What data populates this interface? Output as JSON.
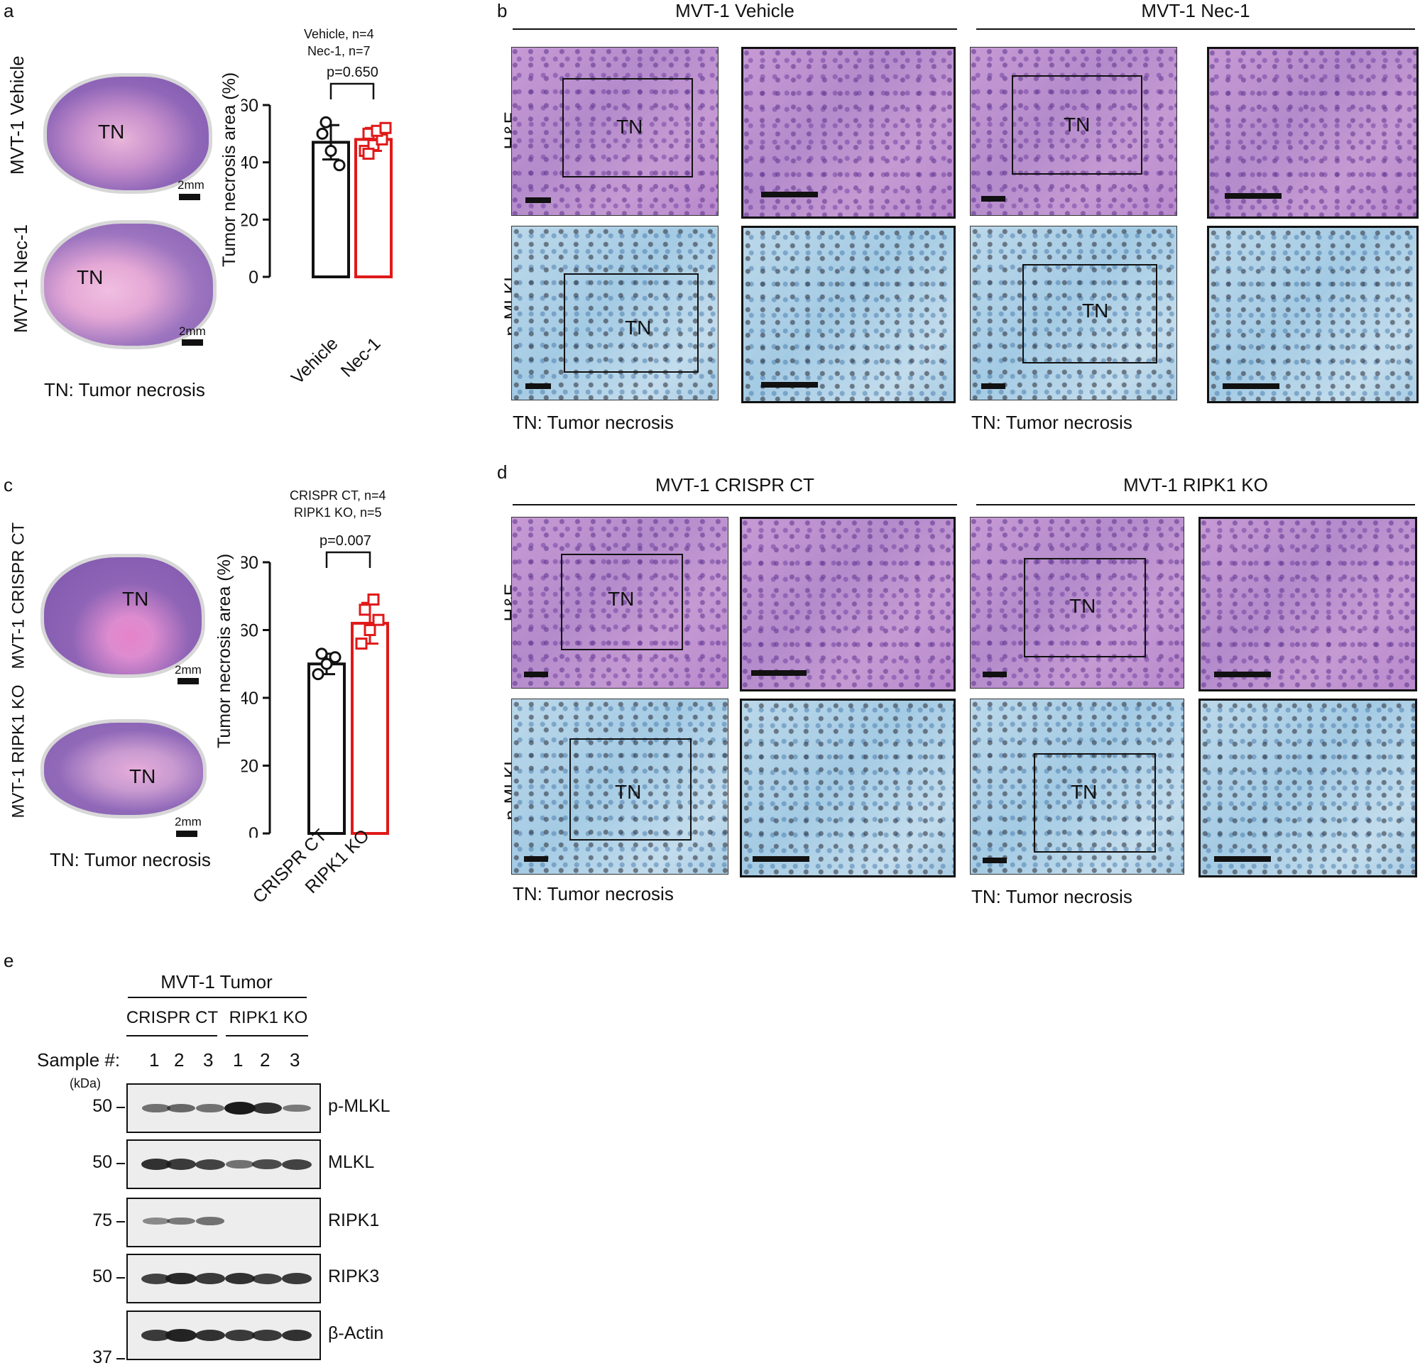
{
  "panel_labels": {
    "a": "a",
    "b": "b",
    "c": "c",
    "d": "d",
    "e": "e"
  },
  "panel_a": {
    "row_labels": [
      "MVT-1 Vehicle",
      "MVT-1 Nec-1"
    ],
    "tn": "TN",
    "scale": "2mm",
    "legend": "TN: Tumor necrosis"
  },
  "panel_c": {
    "row_labels": [
      "MVT-1 CRISPR CT",
      "MVT-1 RIPK1 KO"
    ],
    "tn": "TN",
    "scale": "2mm",
    "legend": "TN: Tumor necrosis"
  },
  "panel_b": {
    "group_titles": [
      "MVT-1 Vehicle",
      "MVT-1 Nec-1"
    ],
    "row_labels": [
      "H&E",
      "p-MLKL"
    ],
    "tn": "TN",
    "legend": "TN: Tumor necrosis"
  },
  "panel_d": {
    "group_titles": [
      "MVT-1 CRISPR CT",
      "MVT-1 RIPK1 KO"
    ],
    "row_labels": [
      "H&E",
      "p-MLKL"
    ],
    "tn": "TN",
    "legend": "TN: Tumor necrosis"
  },
  "panel_e": {
    "title": "MVT-1 Tumor",
    "groups": [
      "CRISPR CT",
      "RIPK1 KO"
    ],
    "sample_label": "Sample #:",
    "samples": [
      "1",
      "2",
      "3",
      "1",
      "2",
      "3"
    ],
    "kda": "(kDa)",
    "blots": [
      {
        "name": "p-MLKL",
        "mw": "50",
        "intensity": [
          0.45,
          0.5,
          0.45,
          1.0,
          0.85,
          0.4
        ]
      },
      {
        "name": "MLKL",
        "mw": "50",
        "intensity": [
          0.85,
          0.8,
          0.75,
          0.45,
          0.7,
          0.75
        ]
      },
      {
        "name": "RIPK1",
        "mw": "75",
        "intensity": [
          0.3,
          0.4,
          0.45,
          0.0,
          0.0,
          0.0
        ]
      },
      {
        "name": "RIPK3",
        "mw": "50",
        "intensity": [
          0.75,
          0.9,
          0.8,
          0.85,
          0.75,
          0.8
        ]
      },
      {
        "name": "β-Actin",
        "mw": "37",
        "intensity": [
          0.8,
          0.95,
          0.85,
          0.8,
          0.8,
          0.85
        ]
      }
    ]
  },
  "chart_data": [
    {
      "type": "bar",
      "annotation": [
        "Vehicle, n=4",
        "Nec-1, n=7"
      ],
      "pvalue": "p=0.650",
      "ylabel": "Tumor necrosis area (%)",
      "ylim": [
        0,
        60
      ],
      "yticks": [
        "0",
        "20",
        "40",
        "60"
      ],
      "categories": [
        "Vehicle",
        "Nec-1"
      ],
      "values": [
        47,
        48
      ],
      "errors": [
        6,
        4
      ],
      "colors": [
        "#111111",
        "#e01919"
      ],
      "points": [
        [
          50,
          44,
          39,
          54
        ],
        [
          44,
          46,
          48,
          50,
          51,
          52,
          43
        ]
      ]
    },
    {
      "type": "bar",
      "annotation": [
        "CRISPR CT, n=4",
        "RIPK1 KO, n=5"
      ],
      "pvalue": "p=0.007",
      "ylabel": "Tumor necrosis area (%)",
      "ylim": [
        0,
        80
      ],
      "yticks": [
        "0",
        "20",
        "40",
        "60",
        "80"
      ],
      "categories": [
        "CRISPR CT",
        "RIPK1 KO"
      ],
      "values": [
        50,
        62
      ],
      "errors": [
        3,
        6
      ],
      "colors": [
        "#111111",
        "#e01919"
      ],
      "points": [
        [
          47,
          50,
          52,
          53
        ],
        [
          56,
          60,
          63,
          66,
          69
        ]
      ]
    }
  ]
}
